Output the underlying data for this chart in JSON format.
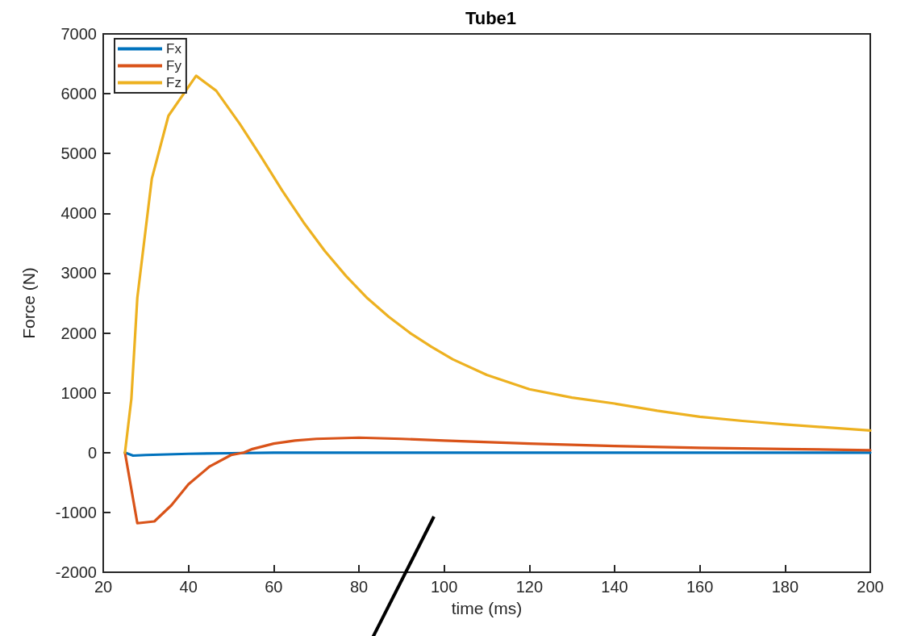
{
  "chart_data": {
    "type": "line",
    "title": "Tube1",
    "xlabel": "time (ms)",
    "ylabel": "Force (N)",
    "xlim": [
      20,
      200
    ],
    "xticks": [
      20,
      40,
      60,
      80,
      100,
      120,
      140,
      160,
      180,
      200
    ],
    "ylim": [
      -2000,
      7000
    ],
    "yticks": [
      -2000,
      -1000,
      0,
      1000,
      2000,
      3000,
      4000,
      5000,
      6000,
      7000
    ],
    "grid": false,
    "legend": "top left",
    "marker": "none",
    "line_style": "solid",
    "series": [
      {
        "name": "Fx",
        "color": "#0072bd",
        "x": [
          25.1,
          27,
          30,
          35,
          40,
          50,
          60,
          80,
          120,
          160,
          200
        ],
        "values": [
          0,
          -50,
          -40,
          -30,
          -20,
          -10,
          0,
          0,
          0,
          0,
          0
        ]
      },
      {
        "name": "Fy",
        "color": "#d95319",
        "x": [
          25.1,
          28,
          32,
          36,
          40,
          45,
          50,
          53,
          55,
          60,
          65,
          70,
          75,
          80,
          85,
          90,
          100,
          120,
          140,
          160,
          180,
          200
        ],
        "values": [
          0,
          -1180,
          -1150,
          -880,
          -530,
          -230,
          -40,
          0,
          60,
          150,
          200,
          230,
          240,
          250,
          240,
          230,
          200,
          150,
          110,
          80,
          60,
          40
        ]
      },
      {
        "name": "Fz",
        "color": "#edb120",
        "x": [
          25.1,
          26.6,
          28,
          31.4,
          35.3,
          41.8,
          46.5,
          52,
          57,
          62,
          67,
          72,
          77,
          82,
          87,
          92,
          97,
          102,
          110,
          120,
          130,
          140,
          150,
          160,
          170,
          180,
          190,
          200
        ],
        "values": [
          0,
          900,
          2590,
          4580,
          5630,
          6300,
          6050,
          5500,
          4950,
          4380,
          3850,
          3370,
          2950,
          2580,
          2270,
          2000,
          1770,
          1560,
          1300,
          1060,
          920,
          820,
          700,
          600,
          530,
          470,
          420,
          370
        ]
      }
    ]
  }
}
